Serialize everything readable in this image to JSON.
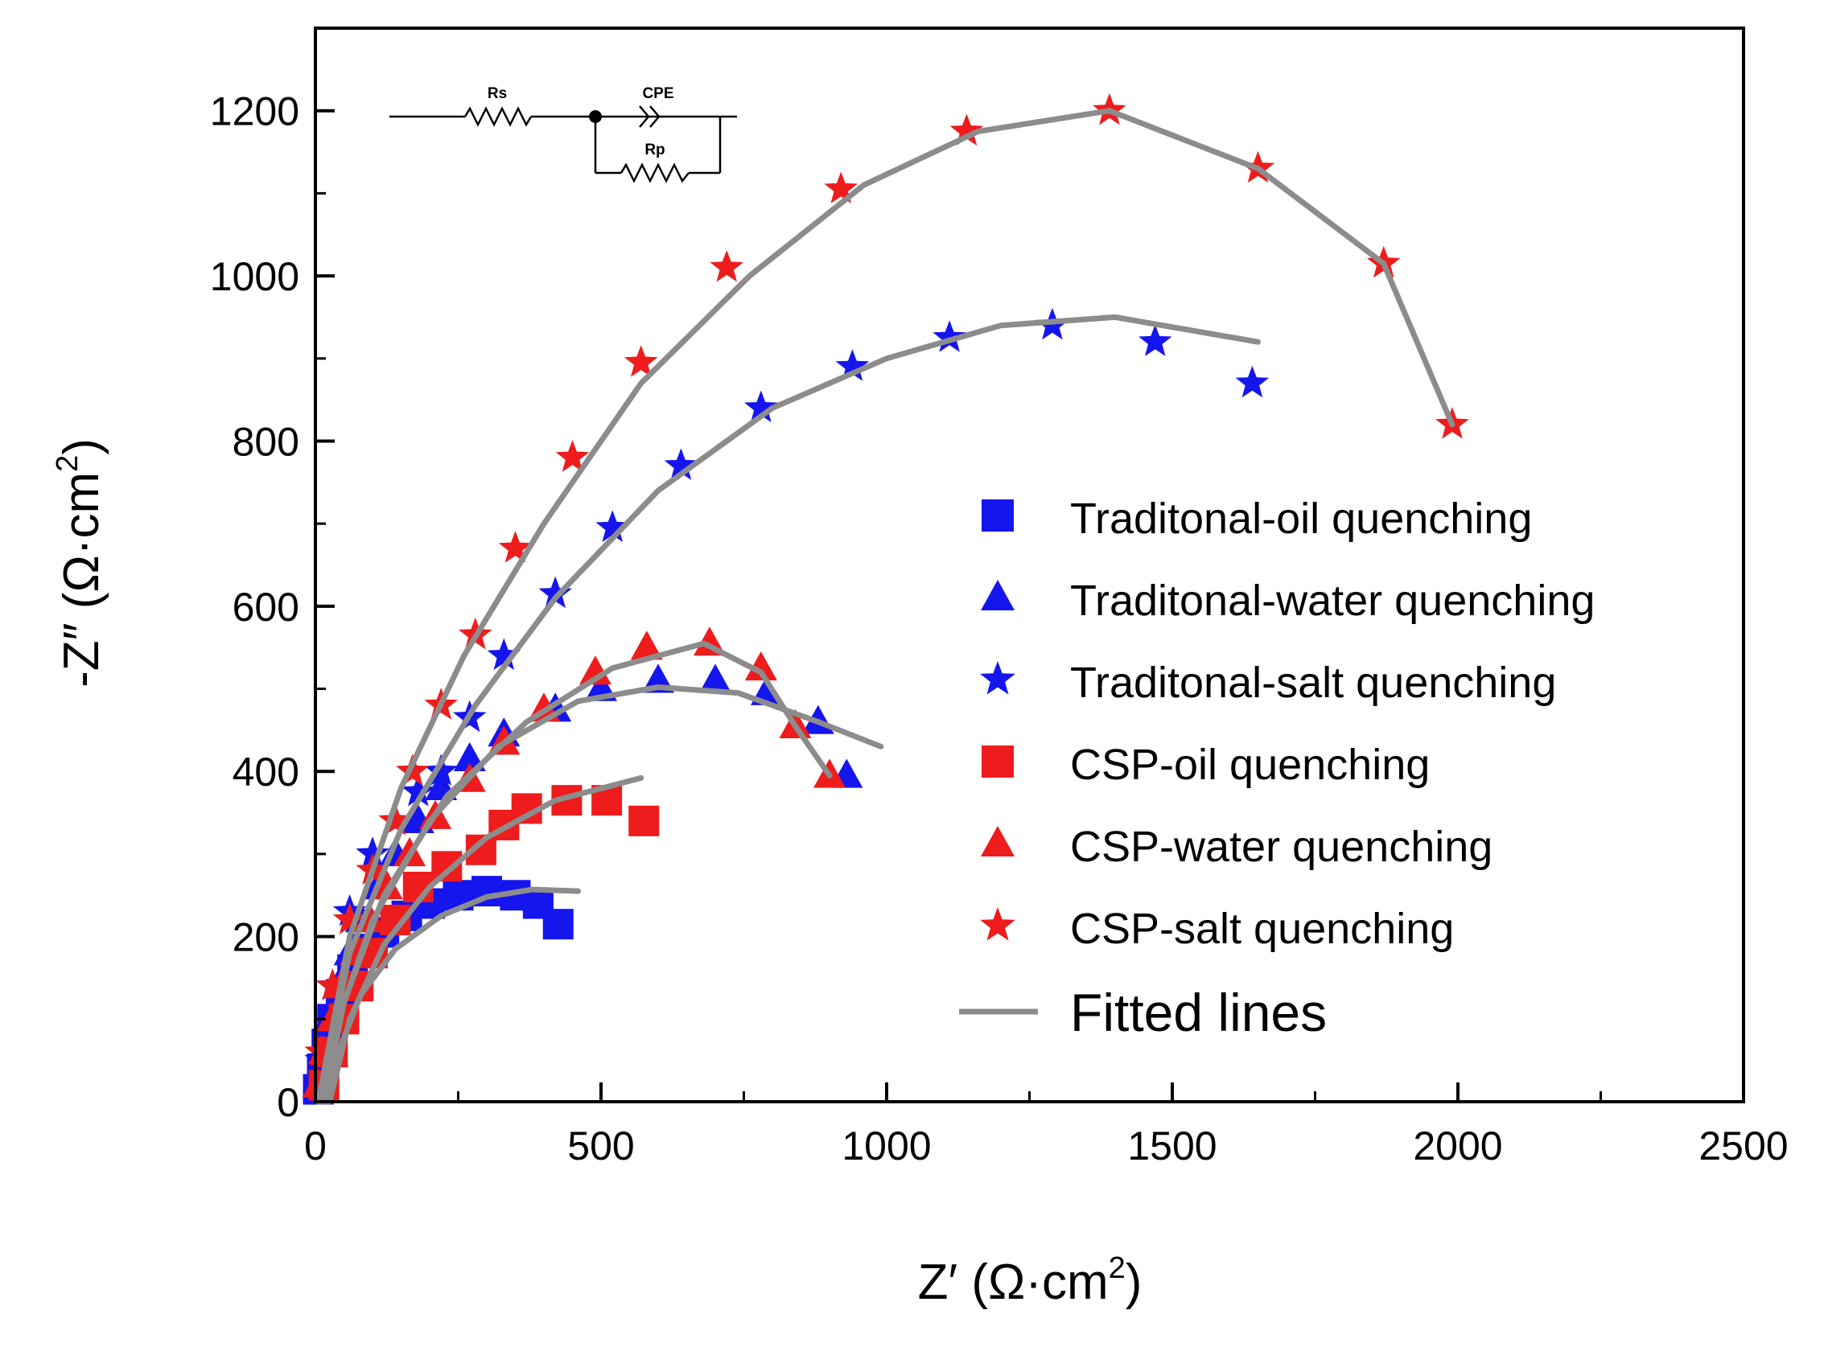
{
  "chart_data": {
    "type": "scatter",
    "title": "",
    "xlabel": {
      "prefix": "Z′ (Ω·cm",
      "sup": "2",
      "suffix": ")"
    },
    "ylabel": {
      "prefix": "-Z″ (Ω·cm",
      "sup": "2",
      "suffix": ")"
    },
    "xlim": [
      0,
      2500
    ],
    "ylim": [
      0,
      1300
    ],
    "xticks": [
      0,
      500,
      1000,
      1500,
      2000,
      2500
    ],
    "yticks": [
      0,
      200,
      400,
      600,
      800,
      1000,
      1200
    ],
    "xtick_labels": [
      "0",
      "500",
      "1000",
      "1500",
      "2000",
      "2500"
    ],
    "ytick_labels": [
      "0",
      "200",
      "400",
      "600",
      "800",
      "1000",
      "1200"
    ],
    "legend_position": "right",
    "colors": {
      "blue": "#1515ee",
      "red": "#ee1c1c",
      "fit": "#8c8c8c"
    },
    "series": [
      {
        "name": "Traditonal-oil quenching",
        "marker": "square",
        "color": "#1515ee",
        "points": [
          [
            5,
            15
          ],
          [
            12,
            40
          ],
          [
            20,
            70
          ],
          [
            30,
            100
          ],
          [
            45,
            130
          ],
          [
            65,
            160
          ],
          [
            90,
            185
          ],
          [
            120,
            205
          ],
          [
            160,
            225
          ],
          [
            200,
            240
          ],
          [
            250,
            250
          ],
          [
            300,
            255
          ],
          [
            350,
            250
          ],
          [
            390,
            240
          ],
          [
            425,
            215
          ]
        ],
        "fit": [
          [
            20,
            0
          ],
          [
            40,
            60
          ],
          [
            80,
            130
          ],
          [
            140,
            185
          ],
          [
            220,
            225
          ],
          [
            300,
            248
          ],
          [
            380,
            257
          ],
          [
            460,
            255
          ]
        ]
      },
      {
        "name": "Traditonal-water quenching",
        "marker": "triangle",
        "color": "#1515ee",
        "points": [
          [
            5,
            20
          ],
          [
            15,
            60
          ],
          [
            25,
            100
          ],
          [
            40,
            140
          ],
          [
            60,
            180
          ],
          [
            80,
            220
          ],
          [
            110,
            260
          ],
          [
            140,
            300
          ],
          [
            180,
            340
          ],
          [
            220,
            380
          ],
          [
            270,
            415
          ],
          [
            330,
            445
          ],
          [
            420,
            475
          ],
          [
            500,
            500
          ],
          [
            600,
            510
          ],
          [
            700,
            510
          ],
          [
            790,
            495
          ],
          [
            880,
            460
          ],
          [
            930,
            395
          ]
        ],
        "fit": [
          [
            10,
            0
          ],
          [
            40,
            100
          ],
          [
            100,
            220
          ],
          [
            200,
            340
          ],
          [
            320,
            430
          ],
          [
            460,
            485
          ],
          [
            600,
            502
          ],
          [
            740,
            495
          ],
          [
            880,
            460
          ],
          [
            990,
            430
          ]
        ]
      },
      {
        "name": "Traditonal-salt quenching",
        "marker": "star",
        "color": "#1515ee",
        "points": [
          [
            10,
            50
          ],
          [
            30,
            140
          ],
          [
            60,
            230
          ],
          [
            100,
            300
          ],
          [
            140,
            340
          ],
          [
            180,
            375
          ],
          [
            220,
            400
          ],
          [
            270,
            465
          ],
          [
            330,
            540
          ],
          [
            420,
            615
          ],
          [
            520,
            695
          ],
          [
            640,
            770
          ],
          [
            780,
            840
          ],
          [
            940,
            890
          ],
          [
            1110,
            925
          ],
          [
            1290,
            940
          ],
          [
            1470,
            920
          ],
          [
            1640,
            870
          ]
        ],
        "fit": [
          [
            5,
            0
          ],
          [
            60,
            180
          ],
          [
            150,
            330
          ],
          [
            280,
            480
          ],
          [
            420,
            610
          ],
          [
            600,
            740
          ],
          [
            800,
            840
          ],
          [
            1000,
            900
          ],
          [
            1200,
            940
          ],
          [
            1400,
            950
          ],
          [
            1650,
            920
          ]
        ]
      },
      {
        "name": "CSP-oil quenching",
        "marker": "square",
        "color": "#ee1c1c",
        "points": [
          [
            15,
            20
          ],
          [
            30,
            60
          ],
          [
            50,
            100
          ],
          [
            75,
            140
          ],
          [
            100,
            180
          ],
          [
            140,
            220
          ],
          [
            180,
            260
          ],
          [
            230,
            285
          ],
          [
            290,
            305
          ],
          [
            330,
            335
          ],
          [
            370,
            355
          ],
          [
            440,
            365
          ],
          [
            510,
            365
          ],
          [
            575,
            340
          ]
        ],
        "fit": [
          [
            25,
            0
          ],
          [
            60,
            100
          ],
          [
            120,
            190
          ],
          [
            200,
            260
          ],
          [
            300,
            320
          ],
          [
            420,
            365
          ],
          [
            570,
            392
          ]
        ]
      },
      {
        "name": "CSP-water quenching",
        "marker": "triangle",
        "color": "#ee1c1c",
        "points": [
          [
            5,
            20
          ],
          [
            15,
            60
          ],
          [
            30,
            100
          ],
          [
            45,
            140
          ],
          [
            70,
            180
          ],
          [
            95,
            220
          ],
          [
            125,
            260
          ],
          [
            165,
            300
          ],
          [
            210,
            345
          ],
          [
            270,
            390
          ],
          [
            330,
            435
          ],
          [
            400,
            475
          ],
          [
            490,
            520
          ],
          [
            580,
            550
          ],
          [
            690,
            555
          ],
          [
            780,
            525
          ],
          [
            840,
            455
          ],
          [
            900,
            395
          ]
        ],
        "fit": [
          [
            15,
            0
          ],
          [
            50,
            120
          ],
          [
            120,
            250
          ],
          [
            230,
            370
          ],
          [
            370,
            460
          ],
          [
            520,
            525
          ],
          [
            680,
            555
          ],
          [
            780,
            520
          ],
          [
            840,
            455
          ],
          [
            900,
            395
          ]
        ]
      },
      {
        "name": "CSP-salt quenching",
        "marker": "star",
        "color": "#ee1c1c",
        "points": [
          [
            10,
            60
          ],
          [
            30,
            140
          ],
          [
            60,
            220
          ],
          [
            100,
            280
          ],
          [
            140,
            340
          ],
          [
            170,
            400
          ],
          [
            220,
            480
          ],
          [
            280,
            565
          ],
          [
            350,
            670
          ],
          [
            450,
            780
          ],
          [
            570,
            895
          ],
          [
            720,
            1010
          ],
          [
            920,
            1105
          ],
          [
            1140,
            1175
          ],
          [
            1390,
            1200
          ],
          [
            1650,
            1130
          ],
          [
            1870,
            1015
          ],
          [
            1990,
            820
          ]
        ],
        "fit": [
          [
            5,
            0
          ],
          [
            60,
            200
          ],
          [
            150,
            380
          ],
          [
            260,
            540
          ],
          [
            400,
            700
          ],
          [
            570,
            870
          ],
          [
            760,
            1000
          ],
          [
            960,
            1110
          ],
          [
            1160,
            1175
          ],
          [
            1390,
            1200
          ],
          [
            1650,
            1130
          ],
          [
            1870,
            1015
          ],
          [
            1990,
            820
          ]
        ]
      }
    ],
    "fitted_label": "Fitted lines",
    "circuit": {
      "labels": [
        "Rs",
        "CPE",
        "Rp"
      ]
    }
  }
}
